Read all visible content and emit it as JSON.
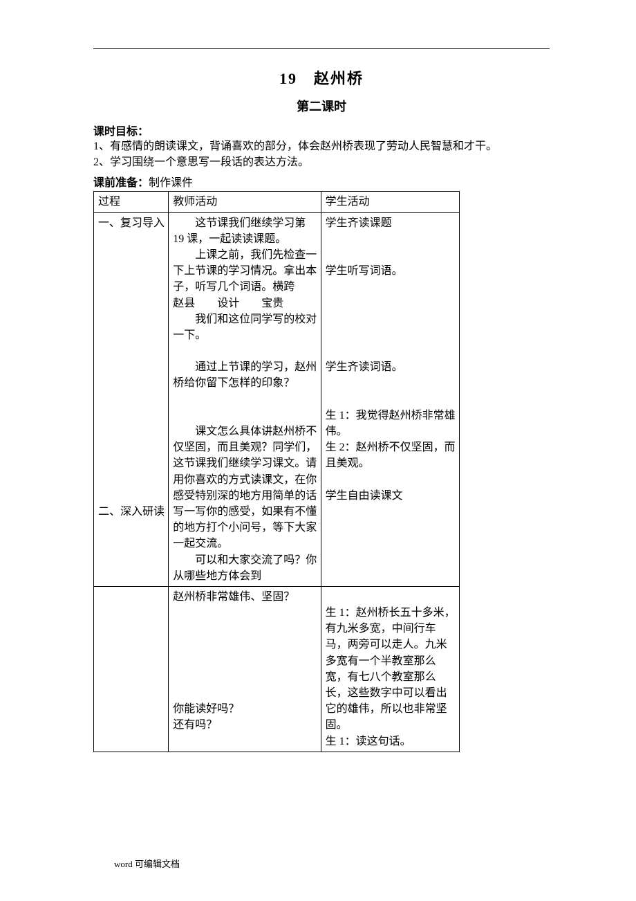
{
  "title_main": "19　赵州桥",
  "title_sub": "第二课时",
  "labels": {
    "goals_label": "课时目标：",
    "prep_label": "课前准备：",
    "prep_value": "制作课件"
  },
  "goals": [
    "1、有感情的朗读课文，背诵喜欢的部分，体会赵州桥表现了劳动人民智慧和才干。",
    "2、学习围绕一个意思写一段话的表达方法。"
  ],
  "table_header": {
    "process": "过程",
    "teacher": "教师活动",
    "student": "学生活动"
  },
  "rows": [
    {
      "process_lines": [
        "一、复习导入",
        "",
        "",
        "",
        "",
        "",
        "",
        "",
        "",
        "",
        "",
        "",
        "",
        "",
        "",
        "",
        "",
        "",
        "二、深入研读"
      ],
      "teacher_lines": [
        {
          "t": "这节课我们继续学习第 19 课，一起读读课题。",
          "indent": true
        },
        {
          "t": "上课之前，我们先检查一下上节课的学习情况。拿出本子，听写几个词语。横跨　　赵县　　设计　　宝贵",
          "indent": true
        },
        {
          "t": "我们和这位同学写的校对一下。",
          "indent": true
        },
        {
          "t": "　",
          "indent": false
        },
        {
          "t": "通过上节课的学习，赵州桥给你留下怎样的印象？",
          "indent": true
        },
        {
          "t": "　",
          "indent": false
        },
        {
          "t": "　",
          "indent": false
        },
        {
          "t": "课文怎么具体讲赵州桥不仅坚固，而且美观？同学们，这节课我们继续学习课文。请用你喜欢的方式读课文，在你感受特别深的地方用简单的话写一写你的感受，如果有不懂的地方打个小问号，等下大家一起交流。",
          "indent": true
        },
        {
          "t": "可以和大家交流了吗？你从哪些地方体会到",
          "indent": true
        }
      ],
      "student_lines": [
        {
          "t": "学生齐读课题",
          "indent": false
        },
        {
          "t": "　",
          "indent": false
        },
        {
          "t": "　",
          "indent": false
        },
        {
          "t": "学生听写词语。",
          "indent": false
        },
        {
          "t": "　",
          "indent": false
        },
        {
          "t": "　",
          "indent": false
        },
        {
          "t": "　",
          "indent": false
        },
        {
          "t": "　",
          "indent": false
        },
        {
          "t": "　",
          "indent": false
        },
        {
          "t": "学生齐读词语。",
          "indent": false
        },
        {
          "t": "　",
          "indent": false
        },
        {
          "t": "　",
          "indent": false
        },
        {
          "t": "生 1：我觉得赵州桥非常雄伟。",
          "indent": false
        },
        {
          "t": "生 2：赵州桥不仅坚固，而且美观。",
          "indent": false
        },
        {
          "t": "　",
          "indent": false
        },
        {
          "t": "学生自由读课文",
          "indent": false
        }
      ]
    },
    {
      "process_lines": [
        ""
      ],
      "teacher_lines": [
        {
          "t": "赵州桥非常雄伟、坚固？",
          "indent": false
        },
        {
          "t": "　",
          "indent": false
        },
        {
          "t": "　",
          "indent": false
        },
        {
          "t": "　",
          "indent": false
        },
        {
          "t": "　",
          "indent": false
        },
        {
          "t": "　",
          "indent": false
        },
        {
          "t": "　",
          "indent": false
        },
        {
          "t": "你能读好吗？",
          "indent": false
        },
        {
          "t": "还有吗？",
          "indent": false
        }
      ],
      "student_lines": [
        {
          "t": "　",
          "indent": false
        },
        {
          "t": "生 1：赵州桥长五十多米，有九米多宽，中间行车马，两旁可以走人。九米多宽有一个半教室那么宽，有七八个教室那么长，这些数字中可以看出它的雄伟，所以也非常坚固。",
          "indent": false
        },
        {
          "t": "生 1：读这句话。",
          "indent": false
        }
      ]
    }
  ],
  "footer": "word 可编辑文档"
}
